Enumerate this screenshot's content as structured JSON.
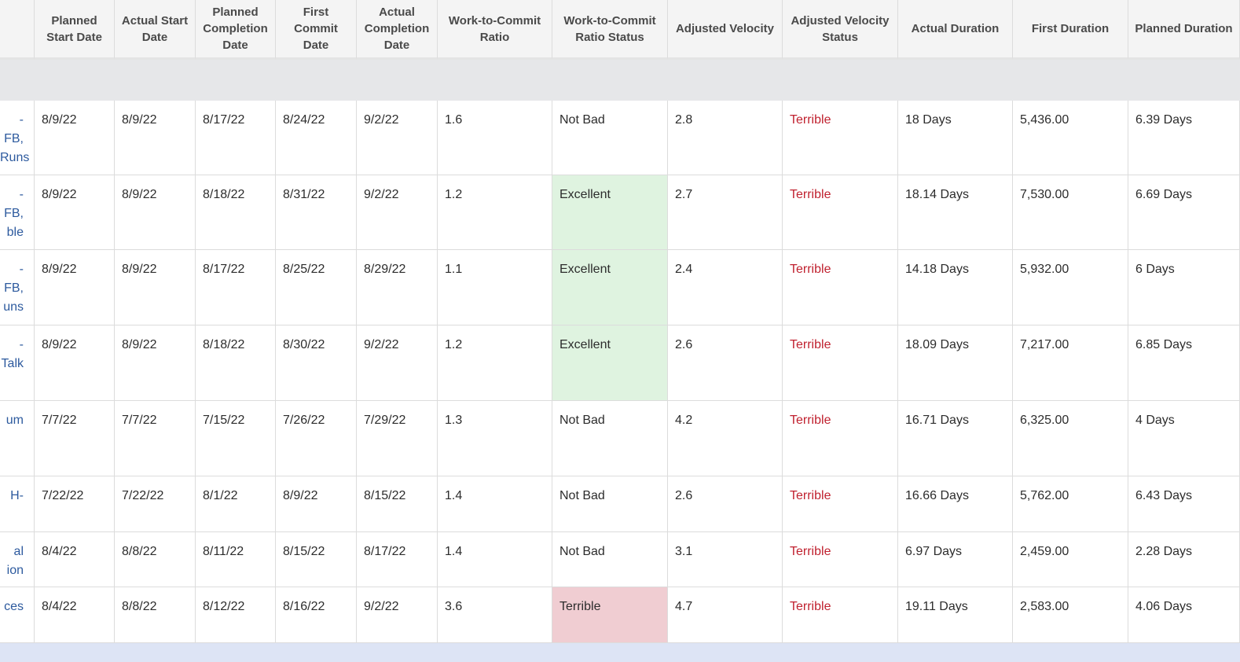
{
  "header": {
    "columns": [
      "Planned Start Date",
      "Actual Start Date",
      "Planned Completion Date",
      "First Commit Date",
      "Actual Completion Date",
      "Work-to-Commit Ratio",
      "Work-to-Commit Ratio Status",
      "Adjusted Velocity",
      "Adjusted Velocity Status",
      "Actual Duration",
      "First Duration",
      "Planned Duration"
    ]
  },
  "status_fill": {
    "Excellent": "#dff3e0",
    "Terrible": "#f0cdd2"
  },
  "velocity_status_color": "#c0212f",
  "table": {
    "rows": [
      {
        "lead": [
          "- FB,",
          "Runs"
        ],
        "cells": [
          "8/9/22",
          "8/9/22",
          "8/17/22",
          "8/24/22",
          "9/2/22",
          "1.6",
          "Not Bad",
          "2.8",
          "Terrible",
          "18 Days",
          "5,436.00",
          "6.39 Days"
        ]
      },
      {
        "lead": [
          "- FB,",
          "ble"
        ],
        "cells": [
          "8/9/22",
          "8/9/22",
          "8/18/22",
          "8/31/22",
          "9/2/22",
          "1.2",
          "Excellent",
          "2.7",
          "Terrible",
          "18.14 Days",
          "7,530.00",
          "6.69 Days"
        ]
      },
      {
        "lead": [
          "- FB,",
          "uns"
        ],
        "cells": [
          "8/9/22",
          "8/9/22",
          "8/17/22",
          "8/25/22",
          "8/29/22",
          "1.1",
          "Excellent",
          "2.4",
          "Terrible",
          "14.18 Days",
          "5,932.00",
          "6 Days"
        ]
      },
      {
        "lead": [
          "-",
          "Talk"
        ],
        "cells": [
          "8/9/22",
          "8/9/22",
          "8/18/22",
          "8/30/22",
          "9/2/22",
          "1.2",
          "Excellent",
          "2.6",
          "Terrible",
          "18.09 Days",
          "7,217.00",
          "6.85 Days"
        ]
      },
      {
        "lead": [
          "um"
        ],
        "cells": [
          "7/7/22",
          "7/7/22",
          "7/15/22",
          "7/26/22",
          "7/29/22",
          "1.3",
          "Not Bad",
          "4.2",
          "Terrible",
          "16.71 Days",
          "6,325.00",
          "4 Days"
        ]
      },
      {
        "lead": [
          "H-"
        ],
        "cells": [
          "7/22/22",
          "7/22/22",
          "8/1/22",
          "8/9/22",
          "8/15/22",
          "1.4",
          "Not Bad",
          "2.6",
          "Terrible",
          "16.66 Days",
          "5,762.00",
          "6.43 Days"
        ]
      },
      {
        "lead": [
          "al",
          "ion"
        ],
        "cells": [
          "8/4/22",
          "8/8/22",
          "8/11/22",
          "8/15/22",
          "8/17/22",
          "1.4",
          "Not Bad",
          "3.1",
          "Terrible",
          "6.97 Days",
          "2,459.00",
          "2.28 Days"
        ]
      },
      {
        "lead": [
          "ces"
        ],
        "cells": [
          "8/4/22",
          "8/8/22",
          "8/12/22",
          "8/16/22",
          "9/2/22",
          "3.6",
          "Terrible",
          "4.7",
          "Terrible",
          "19.11 Days",
          "2,583.00",
          "4.06 Days"
        ]
      }
    ]
  }
}
